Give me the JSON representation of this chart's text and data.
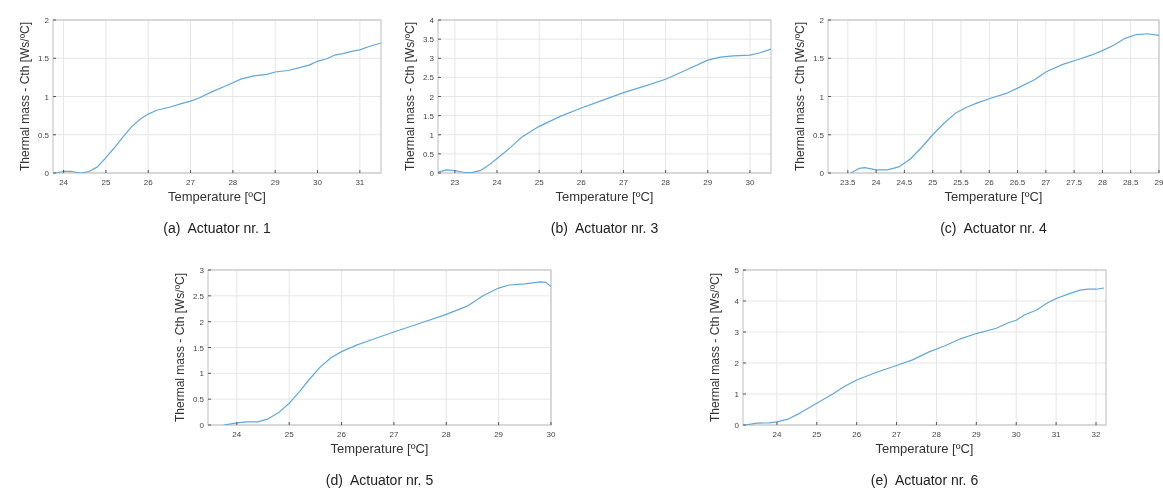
{
  "chart_data": [
    {
      "type": "line",
      "title": "(a)  Actuator nr. 1",
      "xlabel": "Temperature [ºC]",
      "ylabel": "Thermal mass - Cth [Ws/ºC]",
      "grid": true,
      "xlim": [
        23.75,
        31.5
      ],
      "xticks": [
        24,
        25,
        26,
        27,
        28,
        29,
        30,
        31
      ],
      "ylim": [
        0,
        2
      ],
      "yticks": [
        0,
        0.5,
        1,
        1.5,
        2
      ],
      "series": [
        {
          "color": "#5fa8d8",
          "x": [
            23.8,
            24.0,
            24.2,
            24.4,
            24.6,
            24.8,
            25.0,
            25.2,
            25.4,
            25.6,
            25.8,
            26.0,
            26.2,
            26.5,
            26.8,
            27.0,
            27.2,
            27.5,
            27.8,
            28.0,
            28.2,
            28.5,
            28.8,
            29.0,
            29.3,
            29.6,
            29.8,
            30.0,
            30.2,
            30.4,
            30.6,
            30.8,
            31.0,
            31.2,
            31.5
          ],
          "values": [
            0.0,
            0.02,
            0.02,
            0.0,
            0.02,
            0.08,
            0.2,
            0.33,
            0.47,
            0.6,
            0.7,
            0.77,
            0.82,
            0.86,
            0.91,
            0.94,
            0.98,
            1.06,
            1.13,
            1.18,
            1.23,
            1.27,
            1.29,
            1.32,
            1.34,
            1.38,
            1.41,
            1.46,
            1.49,
            1.54,
            1.56,
            1.59,
            1.61,
            1.65,
            1.7
          ]
        }
      ]
    },
    {
      "type": "line",
      "title": "(b)  Actuator nr. 3",
      "xlabel": "Temperature [ºC]",
      "ylabel": "Thermal mass - Cth [Ws/ºC]",
      "grid": true,
      "xlim": [
        22.6,
        30.5
      ],
      "xticks": [
        23,
        24,
        25,
        26,
        27,
        28,
        29,
        30
      ],
      "ylim": [
        0,
        4
      ],
      "yticks": [
        0,
        0.5,
        1,
        1.5,
        2,
        2.5,
        3,
        3.5,
        4
      ],
      "series": [
        {
          "color": "#5fa8d8",
          "x": [
            22.6,
            22.8,
            23.0,
            23.2,
            23.4,
            23.6,
            23.8,
            24.0,
            24.3,
            24.6,
            25.0,
            25.5,
            26.0,
            26.5,
            27.0,
            27.5,
            28.0,
            28.5,
            29.0,
            29.3,
            29.6,
            30.0,
            30.2,
            30.5
          ],
          "values": [
            0.02,
            0.08,
            0.06,
            0.02,
            0.01,
            0.06,
            0.2,
            0.38,
            0.65,
            0.95,
            1.22,
            1.48,
            1.7,
            1.9,
            2.1,
            2.27,
            2.45,
            2.7,
            2.95,
            3.03,
            3.06,
            3.08,
            3.13,
            3.24
          ]
        }
      ]
    },
    {
      "type": "line",
      "title": "(c)  Actuator nr. 4",
      "xlabel": "Temperature [ºC]",
      "ylabel": "Thermal mass - Cth [Ws/ºC]",
      "grid": true,
      "xlim": [
        23.15,
        29
      ],
      "xticks": [
        23.5,
        24,
        24.5,
        25,
        25.5,
        26,
        26.5,
        27,
        27.5,
        28,
        28.5,
        29
      ],
      "ylim": [
        0,
        2
      ],
      "yticks": [
        0,
        0.5,
        1,
        1.5,
        2
      ],
      "series": [
        {
          "color": "#5fa8d8",
          "x": [
            23.55,
            23.7,
            23.8,
            24.0,
            24.2,
            24.4,
            24.6,
            24.8,
            25.0,
            25.2,
            25.4,
            25.6,
            25.8,
            26.0,
            26.3,
            26.5,
            26.8,
            27.0,
            27.3,
            27.6,
            27.8,
            28.0,
            28.2,
            28.4,
            28.6,
            28.8,
            29.0
          ],
          "values": [
            0.0,
            0.06,
            0.07,
            0.04,
            0.04,
            0.08,
            0.18,
            0.33,
            0.5,
            0.65,
            0.78,
            0.86,
            0.92,
            0.97,
            1.04,
            1.11,
            1.22,
            1.32,
            1.42,
            1.49,
            1.54,
            1.6,
            1.67,
            1.76,
            1.81,
            1.82,
            1.8
          ]
        }
      ]
    },
    {
      "type": "line",
      "title": "(d)  Actuator nr. 5",
      "xlabel": "Temperature [ºC]",
      "ylabel": "Thermal mass - Cth [Ws/ºC]",
      "grid": true,
      "xlim": [
        23.45,
        30
      ],
      "xticks": [
        24,
        25,
        26,
        27,
        28,
        29,
        30
      ],
      "ylim": [
        0,
        3
      ],
      "yticks": [
        0,
        0.5,
        1,
        1.5,
        2,
        2.5,
        3
      ],
      "series": [
        {
          "color": "#5fa8d8",
          "x": [
            23.75,
            24.0,
            24.2,
            24.4,
            24.6,
            24.8,
            25.0,
            25.2,
            25.4,
            25.6,
            25.8,
            26.0,
            26.3,
            26.6,
            27.0,
            27.5,
            28.0,
            28.4,
            28.7,
            29.0,
            29.2,
            29.5,
            29.8,
            29.9,
            30.0
          ],
          "values": [
            0.0,
            0.04,
            0.06,
            0.06,
            0.12,
            0.24,
            0.42,
            0.65,
            0.9,
            1.13,
            1.3,
            1.42,
            1.55,
            1.66,
            1.8,
            1.97,
            2.14,
            2.3,
            2.5,
            2.65,
            2.71,
            2.73,
            2.77,
            2.76,
            2.68
          ]
        }
      ]
    },
    {
      "type": "line",
      "title": "(e)  Actuator nr. 6",
      "xlabel": "Temperature [ºC]",
      "ylabel": "Thermal mass - Cth [Ws/ºC]",
      "grid": true,
      "xlim": [
        23.15,
        32.25
      ],
      "xticks": [
        24,
        25,
        26,
        27,
        28,
        29,
        30,
        31,
        32
      ],
      "ylim": [
        0,
        5
      ],
      "yticks": [
        0,
        1,
        2,
        3,
        4,
        5
      ],
      "series": [
        {
          "color": "#5fa8d8",
          "x": [
            23.2,
            23.5,
            23.8,
            24.0,
            24.3,
            24.6,
            25.0,
            25.4,
            25.7,
            26.0,
            26.5,
            27.0,
            27.4,
            27.8,
            28.2,
            28.6,
            29.0,
            29.5,
            29.8,
            30.0,
            30.2,
            30.5,
            30.8,
            31.0,
            31.3,
            31.6,
            31.8,
            32.0,
            32.2
          ],
          "values": [
            0.0,
            0.06,
            0.07,
            0.1,
            0.2,
            0.4,
            0.7,
            1.0,
            1.25,
            1.45,
            1.7,
            1.92,
            2.1,
            2.35,
            2.55,
            2.78,
            2.95,
            3.12,
            3.3,
            3.38,
            3.55,
            3.7,
            3.95,
            4.08,
            4.22,
            4.35,
            4.38,
            4.38,
            4.42
          ]
        }
      ]
    }
  ]
}
